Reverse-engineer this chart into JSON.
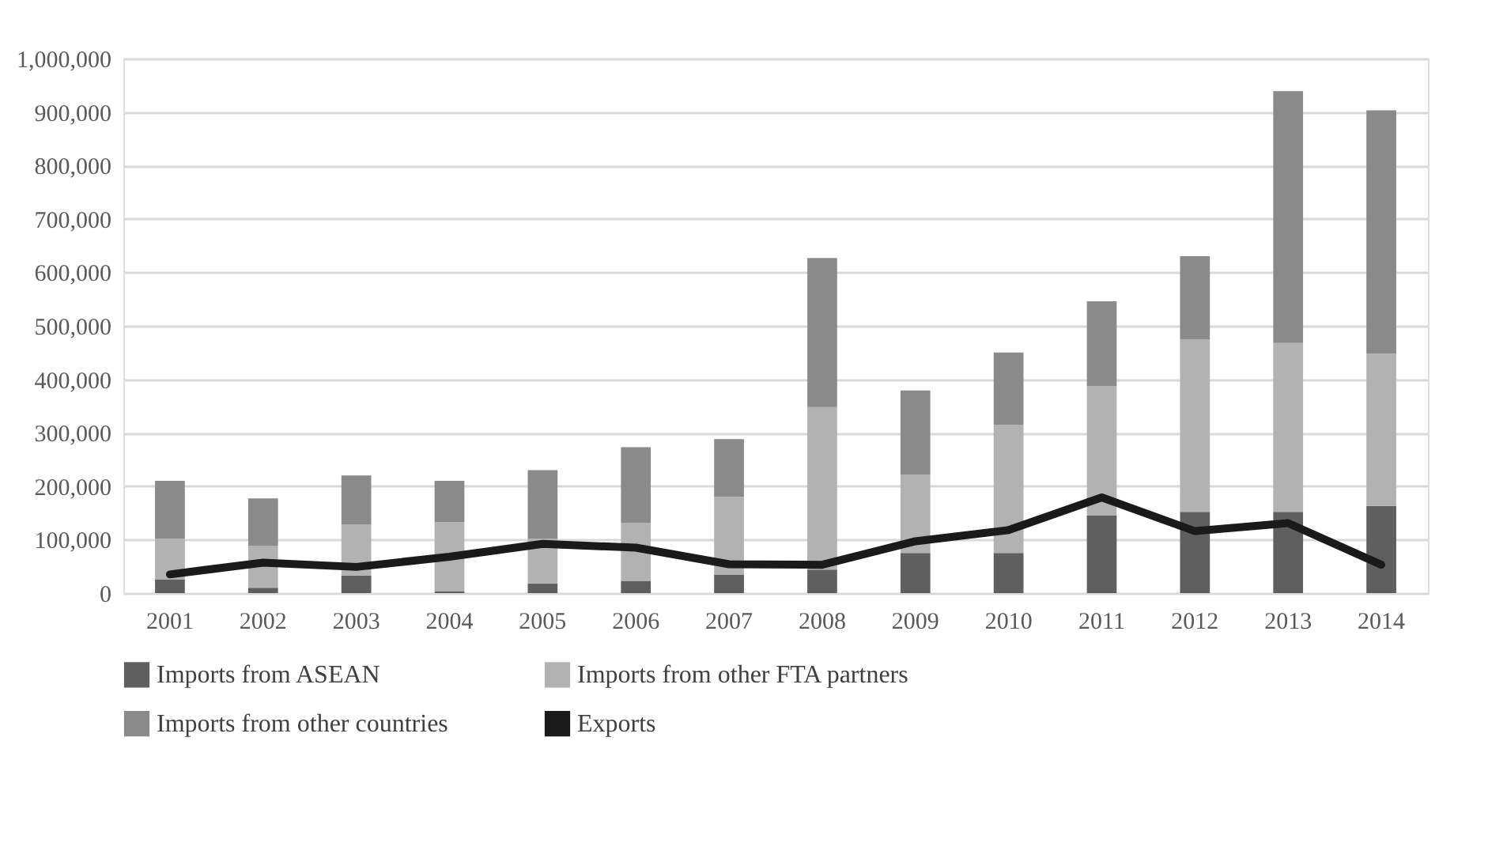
{
  "chart_data": {
    "type": "bar",
    "stacked": true,
    "categories": [
      "2001",
      "2002",
      "2003",
      "2004",
      "2005",
      "2006",
      "2007",
      "2008",
      "2009",
      "2010",
      "2011",
      "2012",
      "2013",
      "2014"
    ],
    "series": [
      {
        "name": "Imports from ASEAN",
        "color": "#5f5f5f",
        "values": [
          25000,
          10000,
          33000,
          3000,
          18000,
          23000,
          34000,
          44000,
          75000,
          75000,
          145000,
          152000,
          152000,
          163000
        ]
      },
      {
        "name": "Imports from other FTA partners",
        "color": "#b2b2b2",
        "values": [
          77000,
          78000,
          95000,
          130000,
          84000,
          108000,
          146000,
          304000,
          147000,
          240000,
          242000,
          322000,
          316000,
          285000
        ]
      },
      {
        "name": "Imports from other countries",
        "color": "#8a8a8a",
        "values": [
          108000,
          89000,
          92000,
          77000,
          128000,
          142000,
          108000,
          279000,
          157000,
          135000,
          159000,
          156000,
          471000,
          455000
        ]
      },
      {
        "name": "Exports",
        "type": "line",
        "color": "#1a1a1a",
        "values": [
          35000,
          57000,
          49000,
          68000,
          92000,
          85000,
          54000,
          53000,
          97000,
          118000,
          179000,
          116000,
          131000,
          53000
        ]
      }
    ],
    "ylim": [
      0,
      1000000
    ],
    "yticks": [
      {
        "value": 0,
        "label": "0"
      },
      {
        "value": 100000,
        "label": "100,000"
      },
      {
        "value": 200000,
        "label": "200,000"
      },
      {
        "value": 300000,
        "label": "300,000"
      },
      {
        "value": 400000,
        "label": "400,000"
      },
      {
        "value": 500000,
        "label": "500,000"
      },
      {
        "value": 600000,
        "label": "600,000"
      },
      {
        "value": 700000,
        "label": "700,000"
      },
      {
        "value": 800000,
        "label": "800,000"
      },
      {
        "value": 900000,
        "label": "900,000"
      },
      {
        "value": 1000000,
        "label": "1,000,000"
      }
    ],
    "grid": "y",
    "legend": "bottom",
    "line_style": "solid",
    "marker": "none"
  }
}
